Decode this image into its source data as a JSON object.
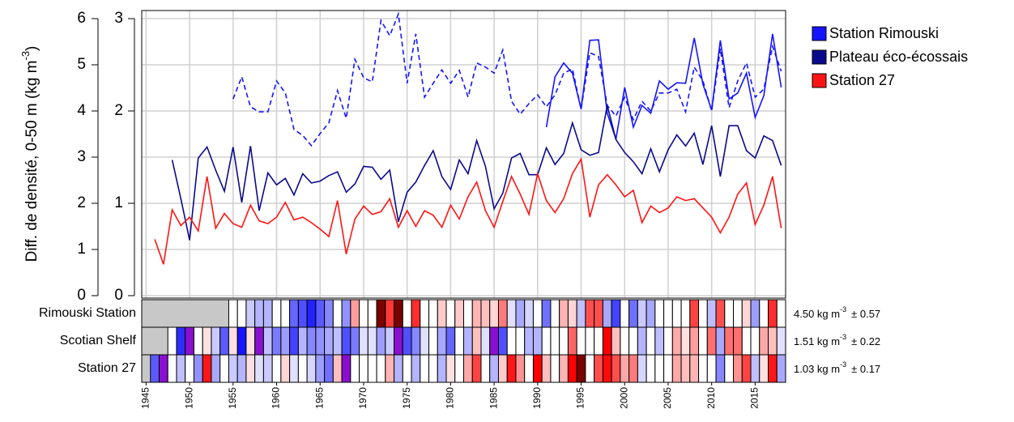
{
  "chart_data": {
    "type": "line",
    "ylabel": "Diff. de densité, 0-50 m (kg m",
    "ylabel_sup": "-3",
    "ylabel_end": ")",
    "x": [
      1945,
      1946,
      1947,
      1948,
      1949,
      1950,
      1951,
      1952,
      1953,
      1954,
      1955,
      1956,
      1957,
      1958,
      1959,
      1960,
      1961,
      1962,
      1963,
      1964,
      1965,
      1966,
      1967,
      1968,
      1969,
      1970,
      1971,
      1972,
      1973,
      1974,
      1975,
      1976,
      1977,
      1978,
      1979,
      1980,
      1981,
      1982,
      1983,
      1984,
      1985,
      1986,
      1987,
      1988,
      1989,
      1990,
      1991,
      1992,
      1993,
      1994,
      1995,
      1996,
      1997,
      1998,
      1999,
      2000,
      2001,
      2002,
      2003,
      2004,
      2005,
      2006,
      2007,
      2008,
      2009,
      2010,
      2011,
      2012,
      2013,
      2014,
      2015,
      2016,
      2017,
      2018
    ],
    "xlim": [
      1944.5,
      2018.5
    ],
    "xticks": [
      1945,
      1950,
      1955,
      1960,
      1965,
      1970,
      1975,
      1980,
      1985,
      1990,
      1995,
      2000,
      2005,
      2010,
      2015
    ],
    "ylim": [
      0,
      6
    ],
    "yticks": [
      0,
      1,
      2,
      3,
      4,
      5,
      6
    ],
    "y2lim": [
      0,
      3
    ],
    "y2ticks": [
      0,
      1,
      2,
      3
    ],
    "grid": true,
    "legend": "outside right",
    "series": [
      {
        "name": "Station Rimouski",
        "color": "#1414ff",
        "axis": "y",
        "linestyle": "solid",
        "values": [
          null,
          null,
          null,
          null,
          null,
          null,
          null,
          null,
          null,
          null,
          null,
          null,
          null,
          null,
          null,
          null,
          null,
          null,
          null,
          null,
          null,
          null,
          null,
          null,
          null,
          null,
          null,
          null,
          null,
          null,
          null,
          null,
          null,
          null,
          null,
          null,
          null,
          null,
          null,
          null,
          null,
          null,
          null,
          null,
          null,
          null,
          3.65,
          4.74,
          5.04,
          4.82,
          4.04,
          5.53,
          5.54,
          3.95,
          3.39,
          4.51,
          3.65,
          4.12,
          3.95,
          4.65,
          4.47,
          4.61,
          4.6,
          5.58,
          4.58,
          4.02,
          5.53,
          4.26,
          4.39,
          4.82,
          3.86,
          4.33,
          5.67,
          4.51
        ]
      },
      {
        "color": "#1414ff",
        "axis": "y",
        "linestyle": "dashed",
        "values": [
          null,
          null,
          null,
          null,
          null,
          null,
          null,
          null,
          null,
          null,
          4.26,
          4.74,
          4.09,
          3.98,
          3.98,
          4.65,
          4.39,
          3.6,
          3.47,
          3.25,
          3.51,
          3.74,
          4.44,
          3.84,
          5.12,
          4.72,
          4.63,
          5.96,
          5.63,
          6.1,
          4.6,
          5.67,
          4.3,
          4.6,
          4.89,
          4.6,
          4.88,
          4.3,
          5.04,
          4.95,
          4.82,
          5.32,
          4.21,
          3.93,
          4.16,
          4.35,
          4.09,
          4.35,
          4.82,
          4.91,
          4.04,
          5.26,
          5.18,
          4.12,
          3.89,
          4.3,
          3.81,
          4.21,
          4.0,
          4.39,
          4.39,
          4.47,
          3.98,
          4.95,
          4.65,
          4.0,
          5.35,
          4.07,
          4.65,
          5.04,
          4.3,
          4.47,
          5.4,
          4.86
        ]
      },
      {
        "name": "Plateau éco-écossais",
        "color": "#0a0a8c",
        "axis": "y2",
        "linestyle": "solid",
        "values": [
          null,
          null,
          null,
          1.47,
          1.05,
          0.6,
          1.49,
          1.61,
          1.36,
          1.13,
          1.61,
          1.01,
          1.62,
          0.92,
          1.33,
          1.2,
          1.27,
          1.09,
          1.32,
          1.22,
          1.24,
          1.3,
          1.34,
          1.12,
          1.21,
          1.4,
          1.39,
          1.26,
          1.36,
          0.8,
          1.12,
          1.23,
          1.41,
          1.57,
          1.29,
          1.15,
          1.47,
          1.32,
          1.68,
          1.4,
          0.94,
          1.11,
          1.49,
          1.54,
          1.31,
          1.31,
          1.6,
          1.42,
          1.54,
          1.87,
          1.58,
          1.52,
          1.55,
          2.06,
          1.69,
          1.55,
          1.45,
          1.32,
          1.59,
          1.34,
          1.58,
          1.74,
          1.62,
          1.76,
          1.42,
          1.84,
          1.29,
          1.84,
          1.84,
          1.57,
          1.49,
          1.73,
          1.68,
          1.41
        ]
      },
      {
        "name": "Station 27",
        "color": "#ff1414",
        "axis": "y2",
        "linestyle": "solid",
        "values": [
          null,
          0.61,
          0.34,
          0.93,
          0.76,
          0.85,
          0.7,
          1.29,
          0.73,
          0.89,
          0.78,
          0.74,
          0.98,
          0.81,
          0.78,
          0.85,
          1.01,
          0.82,
          0.85,
          0.79,
          0.72,
          0.64,
          1.03,
          0.45,
          0.83,
          0.97,
          0.88,
          0.91,
          1.05,
          0.74,
          0.92,
          0.75,
          0.92,
          0.87,
          0.74,
          0.98,
          0.83,
          1.07,
          1.23,
          0.92,
          0.74,
          1.02,
          1.29,
          1.1,
          0.88,
          1.32,
          1.03,
          0.9,
          1.05,
          1.32,
          1.48,
          0.85,
          1.2,
          1.31,
          1.2,
          1.07,
          1.14,
          0.79,
          0.97,
          0.9,
          0.95,
          1.07,
          1.03,
          1.05,
          0.95,
          0.85,
          0.68,
          0.85,
          1.1,
          1.22,
          0.77,
          0.98,
          1.29,
          0.73
        ]
      }
    ],
    "scorecard": {
      "neg_color": "#0000ff",
      "pos_color": "#ff0000",
      "neg_extreme": "#8a10d0",
      "pos_extreme": "#7a0000",
      "missing_color": "#c8c8c8",
      "rows": [
        {
          "label": "Rimouski Station",
          "mean": "4.50 kg m",
          "unit_sup": "-3",
          "sd": "± 0.57",
          "values": [
            null,
            null,
            null,
            null,
            null,
            null,
            null,
            null,
            null,
            null,
            -0.4,
            0.4,
            -0.7,
            -0.9,
            -0.9,
            0.3,
            -0.2,
            -1.6,
            -1.8,
            -2.2,
            -1.7,
            -1.3,
            -0.1,
            -1.2,
            1.1,
            0.4,
            0.2,
            2.6,
            2.0,
            2.8,
            0.2,
            2.1,
            -0.4,
            0.2,
            0.7,
            0.2,
            0.7,
            -0.4,
            0.9,
            0.8,
            0.6,
            1.4,
            -0.5,
            -1.0,
            -0.6,
            -0.3,
            -1.5,
            0.4,
            0.9,
            0.6,
            -0.8,
            1.8,
            1.8,
            -1.0,
            -1.9,
            0.0,
            -1.5,
            -0.7,
            -1.0,
            0.3,
            -0.1,
            0.2,
            0.2,
            1.9,
            0.1,
            -0.8,
            1.8,
            -0.4,
            -0.2,
            0.6,
            -1.1,
            -0.3,
            2.1,
            0.0
          ]
        },
        {
          "label": "Scotian Shelf",
          "mean": "1.51 kg m",
          "unit_sup": "-3",
          "sd": "± 0.22",
          "values": [
            null,
            null,
            null,
            -0.2,
            -2.1,
            -4.1,
            -0.1,
            0.5,
            -0.7,
            -1.7,
            0.5,
            -2.3,
            0.5,
            -2.7,
            -0.8,
            -1.4,
            -1.1,
            -1.9,
            -0.9,
            -1.3,
            -1.2,
            -1.0,
            -0.8,
            -1.8,
            -1.4,
            -0.5,
            -0.5,
            -1.1,
            -0.7,
            -3.2,
            -1.8,
            -1.3,
            -0.5,
            0.3,
            -1.0,
            -1.6,
            -0.2,
            -0.9,
            0.8,
            -0.5,
            -2.6,
            -1.8,
            -0.1,
            0.1,
            -0.9,
            -0.9,
            0.4,
            -0.4,
            0.1,
            1.6,
            0.3,
            0.0,
            0.2,
            2.5,
            0.8,
            0.2,
            -0.3,
            -0.9,
            0.4,
            -0.8,
            0.3,
            1.0,
            0.5,
            1.1,
            -0.4,
            1.5,
            -1.0,
            1.5,
            1.5,
            0.3,
            -0.1,
            1.0,
            0.8,
            -0.5
          ]
        },
        {
          "label": "Station 27",
          "mean": "1.03 kg m",
          "unit_sup": "-3",
          "sd": "± 0.17",
          "values": [
            null,
            -1.7,
            -3.3,
            0.2,
            -0.8,
            -0.3,
            -1.2,
            2.3,
            -1.0,
            -0.1,
            -0.7,
            -0.9,
            0.5,
            -0.5,
            -0.7,
            -0.3,
            0.6,
            -0.5,
            -0.3,
            -0.6,
            -1.1,
            -1.5,
            0.8,
            -2.6,
            -0.4,
            0.4,
            -0.1,
            0.1,
            0.9,
            -0.9,
            0.1,
            -0.9,
            0.1,
            -0.2,
            -0.9,
            0.5,
            -0.4,
            1.0,
            1.9,
            0.1,
            -0.9,
            0.7,
            2.3,
            1.2,
            -0.1,
            2.5,
            0.8,
            0.0,
            0.9,
            2.5,
            3.4,
            -0.3,
            1.8,
            2.4,
            1.8,
            1.0,
            1.4,
            -0.6,
            0.4,
            0.0,
            0.3,
            1.0,
            0.8,
            0.9,
            0.3,
            -0.3,
            -1.3,
            -0.3,
            1.2,
            1.9,
            -0.8,
            0.5,
            2.3,
            -1.0
          ]
        }
      ]
    }
  }
}
